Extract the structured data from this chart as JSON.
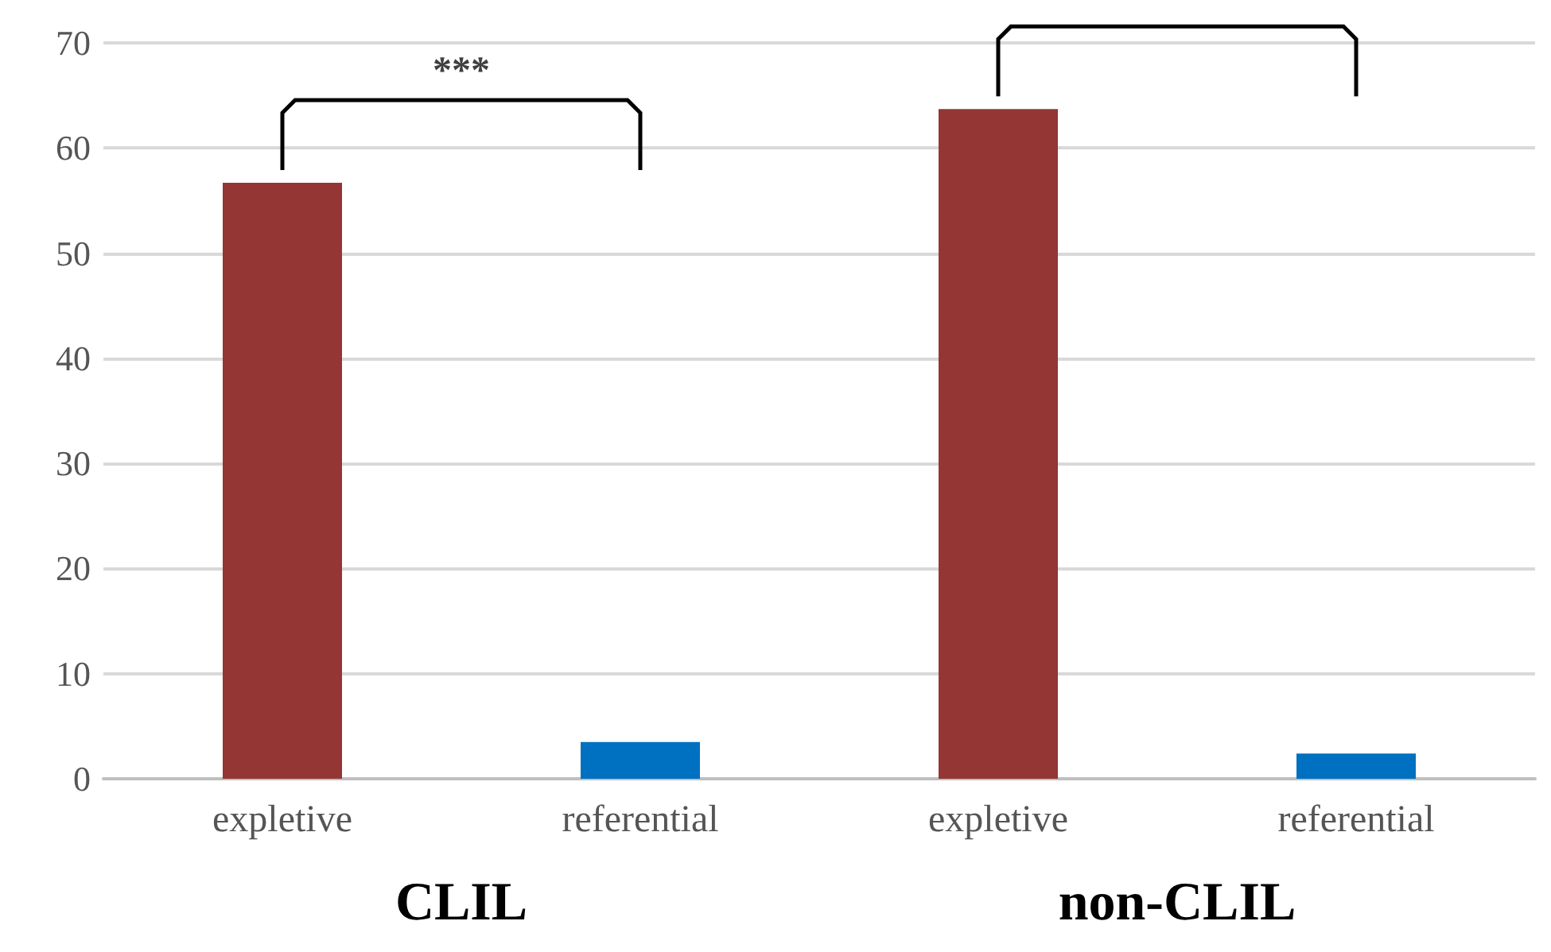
{
  "chart_data": {
    "type": "bar",
    "categories": [
      "expletive",
      "referential",
      "expletive",
      "referential"
    ],
    "values": [
      56.7,
      3.5,
      63.7,
      2.4
    ],
    "colors": [
      "#943634",
      "#0070c0",
      "#943634",
      "#0070c0"
    ],
    "ylim": [
      0,
      70
    ],
    "yticks": [
      0,
      10,
      20,
      30,
      40,
      50,
      60,
      70
    ],
    "grid": "y",
    "annotations": [
      "***",
      "CLIL",
      "non-CLIL"
    ]
  }
}
